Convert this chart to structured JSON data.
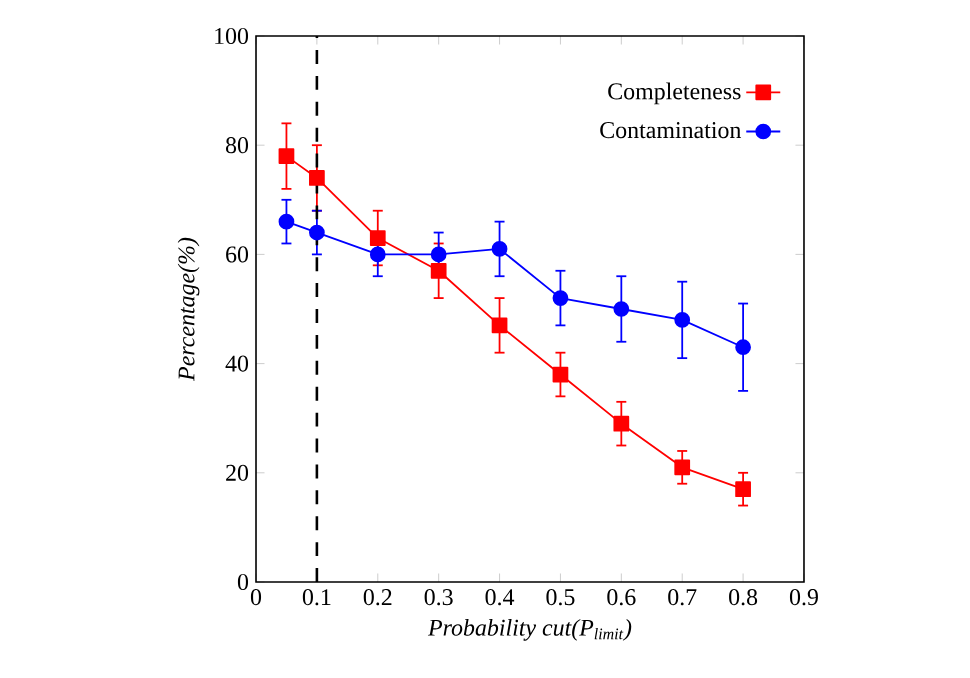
{
  "chart_data": {
    "type": "line",
    "xlabel": "Probability cut(P$_{limit}$)",
    "ylabel": "Percentage(%)",
    "x": [
      0.05,
      0.1,
      0.2,
      0.3,
      0.4,
      0.5,
      0.6,
      0.7,
      0.8
    ],
    "series": [
      {
        "name": "Completeness",
        "color": "#ff0000",
        "marker": "square",
        "values": [
          78,
          74,
          63,
          57,
          47,
          38,
          29,
          21,
          17
        ],
        "errors": [
          6,
          6,
          5,
          5,
          5,
          4,
          4,
          3,
          3
        ]
      },
      {
        "name": "Contamination",
        "color": "#0000ff",
        "marker": "circle",
        "values": [
          66,
          64,
          60,
          60,
          61,
          52,
          50,
          48,
          43
        ],
        "errors": [
          4,
          4,
          4,
          4,
          5,
          5,
          6,
          7,
          8
        ]
      }
    ],
    "xlim": [
      0,
      0.9
    ],
    "ylim": [
      0,
      100
    ],
    "xticks": [
      0,
      0.1,
      0.2,
      0.3,
      0.4,
      0.5,
      0.6,
      0.7,
      0.8,
      0.9
    ],
    "yticks": [
      0,
      20,
      40,
      60,
      80,
      100
    ],
    "ref_lines": [
      {
        "axis": "x",
        "value": 0.1,
        "color": "#000000",
        "line_style": "dashed"
      }
    ],
    "legend": "top right",
    "grid": false,
    "line_style": "solid"
  }
}
